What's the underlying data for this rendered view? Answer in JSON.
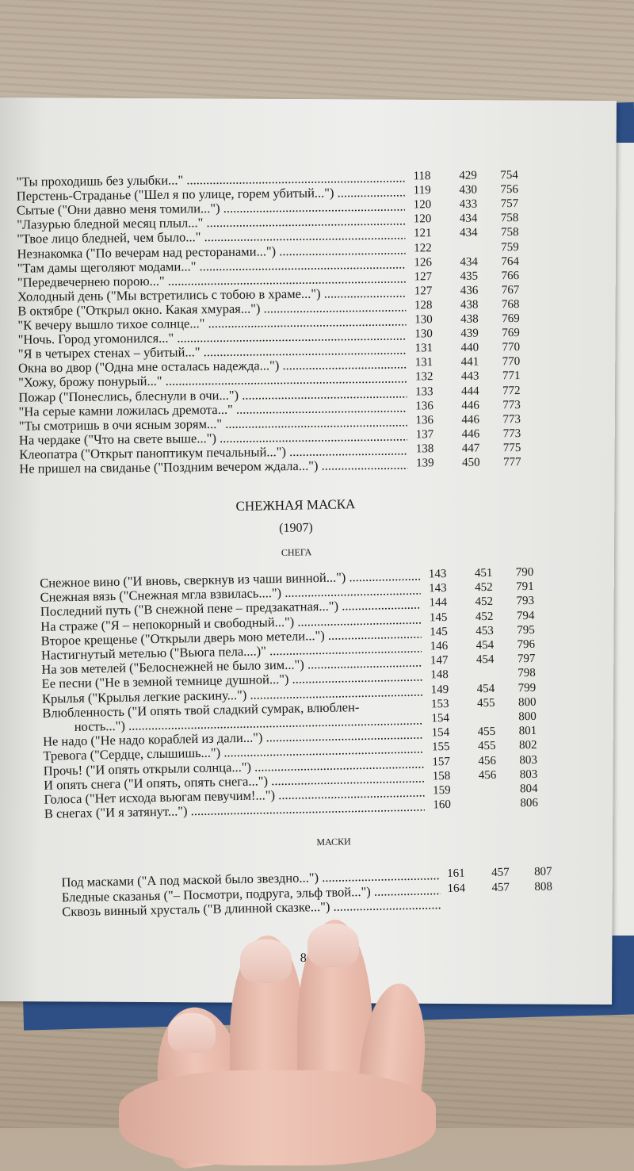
{
  "top_entries": [
    [
      "\"Ты проходишь без улыбки...\"",
      "118",
      "429",
      "754"
    ],
    [
      "Перстень-Страданье (\"Шел я по улице, горем убитый...\")",
      "119",
      "430",
      "756"
    ],
    [
      "Сытые (\"Они давно меня томили...\")",
      "120",
      "433",
      "757"
    ],
    [
      "\"Лазурью бледной месяц плыл...\"",
      "120",
      "434",
      "758"
    ],
    [
      "\"Твое лицо бледней, чем было...\"",
      "121",
      "434",
      "758"
    ],
    [
      "Незнакомка (\"По вечерам над ресторанами...\")",
      "122",
      "",
      "759"
    ],
    [
      "\"Там дамы щеголяют модами...\"",
      "126",
      "434",
      "764"
    ],
    [
      "\"Передвечернею порою...\"",
      "127",
      "435",
      "766"
    ],
    [
      "Холодный день (\"Мы встретились с тобою в храме...\")",
      "127",
      "436",
      "767"
    ],
    [
      "В октябре (\"Открыл окно. Какая хмурая...\")",
      "128",
      "438",
      "768"
    ],
    [
      "\"К вечеру вышло тихое солнце...\"",
      "130",
      "438",
      "769"
    ],
    [
      "\"Ночь. Город угомонился...\"",
      "130",
      "439",
      "769"
    ],
    [
      "\"Я в четырех стенах – убитый...\"",
      "131",
      "440",
      "770"
    ],
    [
      "Окна во двор (\"Одна мне осталась надежда...\")",
      "131",
      "441",
      "770"
    ],
    [
      "\"Хожу, брожу понурый...\"",
      "132",
      "443",
      "771"
    ],
    [
      "Пожар (\"Понеслись, блеснули в очи...\")",
      "133",
      "444",
      "772"
    ],
    [
      "\"На серые камни ложилась дремота...\"",
      "136",
      "446",
      "773"
    ],
    [
      "\"Ты смотришь в очи ясным зорям...\"",
      "136",
      "446",
      "773"
    ],
    [
      "На чердаке (\"Что на свете выше...\")",
      "137",
      "446",
      "773"
    ],
    [
      "Клеопатра (\"Открыт паноптикум печальный...\")",
      "138",
      "447",
      "775"
    ],
    [
      "Не пришел на свиданье (\"Поздним вечером ждала...\")",
      "139",
      "450",
      "777"
    ]
  ],
  "book_title": "СНЕЖНАЯ МАСКА",
  "book_year": "(1907)",
  "section_snega": "СНЕГА",
  "snega_entries": [
    [
      "Снежное вино (\"И вновь, сверкнув из чаши винной...\")",
      "143",
      "451",
      "790"
    ],
    [
      "Снежная вязь (\"Снежная мгла взвилась....\")",
      "143",
      "452",
      "791"
    ],
    [
      "Последний путь (\"В снежной пене – предзакатная...\")",
      "144",
      "452",
      "793"
    ],
    [
      "На страже (\"Я – непокорный и свободный...\")",
      "145",
      "452",
      "794"
    ],
    [
      "Второе крещенье (\"Открыли дверь мою метели...\")",
      "145",
      "453",
      "795"
    ],
    [
      "Настигнутый метелью (\"Вьюга пела....)\"",
      "146",
      "454",
      "796"
    ],
    [
      "На зов метелей (\"Белоснежней не было зим...\")",
      "147",
      "454",
      "797"
    ],
    [
      "Ее песни (\"Не в земной темнице душной...\")",
      "148",
      "",
      "798"
    ],
    [
      "Крылья (\"Крылья легкие раскину...\")",
      "149",
      "454",
      "799"
    ],
    [
      "Влюбленность (\"И опять твой сладкий сумрак, влюблен-",
      "153",
      "455",
      "800"
    ],
    [
      "ность...\")",
      "154",
      "",
      "800"
    ],
    [
      "Не надо (\"Не надо кораблей из дали...\")",
      "154",
      "455",
      "801"
    ],
    [
      "Тревога (\"Сердце, слышишь...\")",
      "155",
      "455",
      "802"
    ],
    [
      "Прочь! (\"И опять открыли солнца...\")",
      "157",
      "456",
      "803"
    ],
    [
      "И опять снега (\"И опять, опять снега...\")",
      "158",
      "456",
      "803"
    ],
    [
      "Голоса (\"Нет исхода вьюгам певучим!...\")",
      "159",
      "",
      "804"
    ],
    [
      "В снегах (\"И я затянут...\")",
      "160",
      "",
      "806"
    ]
  ],
  "section_maski": "МАСКИ",
  "maski_entries": [
    [
      "Под масками (\"А под маской было звездно...\")",
      "161",
      "457",
      "807"
    ],
    [
      "Бледные сказанья (\"– Посмотри, подруга, эльф твой...\")",
      "164",
      "457",
      "808"
    ],
    [
      "Сквозь винный хрусталь (\"В длинной сказке...\")",
      "",
      "",
      ""
    ]
  ],
  "page_number": "86…",
  "colors": {
    "paper": "#eeeeec",
    "ink": "#1c1c1c",
    "cover": "#2d4f86"
  }
}
